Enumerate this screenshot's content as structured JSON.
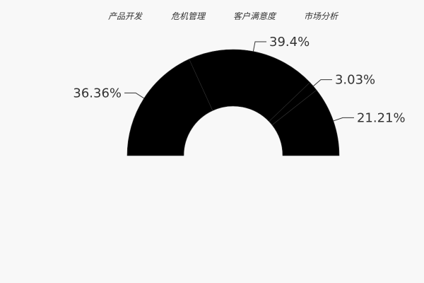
{
  "colors": {
    "background": "#f8f8f8",
    "slice_fill": "#000000",
    "text": "#333333"
  },
  "chart_data": {
    "type": "pie",
    "variant": "half-donut",
    "legend_position": "top",
    "series": [
      {
        "slices": [
          {
            "name": "产品开发",
            "value": 36.36,
            "label": "36.36%"
          },
          {
            "name": "危机管理",
            "value": 39.4,
            "label": "39.4%"
          },
          {
            "name": "客户满意度",
            "value": 3.03,
            "label": "3.03%"
          },
          {
            "name": "市场分析",
            "value": 21.21,
            "label": "21.21%"
          }
        ]
      }
    ]
  }
}
